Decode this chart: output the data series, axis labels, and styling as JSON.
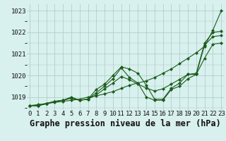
{
  "title": "Graphe pression niveau de la mer (hPa)",
  "xlabel_hours": [
    0,
    1,
    2,
    3,
    4,
    5,
    6,
    7,
    8,
    9,
    10,
    11,
    12,
    13,
    14,
    15,
    16,
    17,
    18,
    19,
    20,
    21,
    22,
    23
  ],
  "series": [
    [
      1018.6,
      1018.6,
      1018.7,
      1018.75,
      1018.8,
      1018.85,
      1018.9,
      1019.0,
      1019.05,
      1019.15,
      1019.25,
      1019.4,
      1019.55,
      1019.65,
      1019.75,
      1019.9,
      1020.1,
      1020.3,
      1020.55,
      1020.8,
      1021.05,
      1021.35,
      1022.1,
      1023.0
    ],
    [
      1018.6,
      1018.65,
      1018.7,
      1018.8,
      1018.85,
      1019.0,
      1018.85,
      1018.9,
      1019.35,
      1019.6,
      1020.0,
      1020.4,
      1020.3,
      1020.1,
      1019.55,
      1018.9,
      1018.9,
      1019.4,
      1019.65,
      1020.05,
      1020.1,
      1021.5,
      1022.0,
      1022.05
    ],
    [
      1018.6,
      1018.6,
      1018.7,
      1018.8,
      1018.85,
      1018.95,
      1018.85,
      1018.9,
      1019.2,
      1019.5,
      1019.85,
      1020.35,
      1019.9,
      1019.65,
      1019.0,
      1018.85,
      1018.85,
      1019.35,
      1019.5,
      1019.85,
      1020.05,
      1021.4,
      1021.8,
      1021.85
    ],
    [
      1018.6,
      1018.6,
      1018.68,
      1018.78,
      1018.85,
      1018.95,
      1018.85,
      1018.9,
      1019.1,
      1019.38,
      1019.65,
      1019.95,
      1019.8,
      1019.6,
      1019.42,
      1019.28,
      1019.38,
      1019.6,
      1019.82,
      1020.05,
      1020.05,
      1020.8,
      1021.45,
      1021.5
    ]
  ],
  "line_color": "#1a5c1a",
  "bg_color": "#d8f0ee",
  "grid_color": "#aac8c4",
  "ylim": [
    1018.4,
    1023.3
  ],
  "yticks": [
    1019,
    1020,
    1021,
    1022,
    1023
  ],
  "title_fontsize": 8.5,
  "tick_fontsize": 6.5,
  "marker_size": 2.2
}
